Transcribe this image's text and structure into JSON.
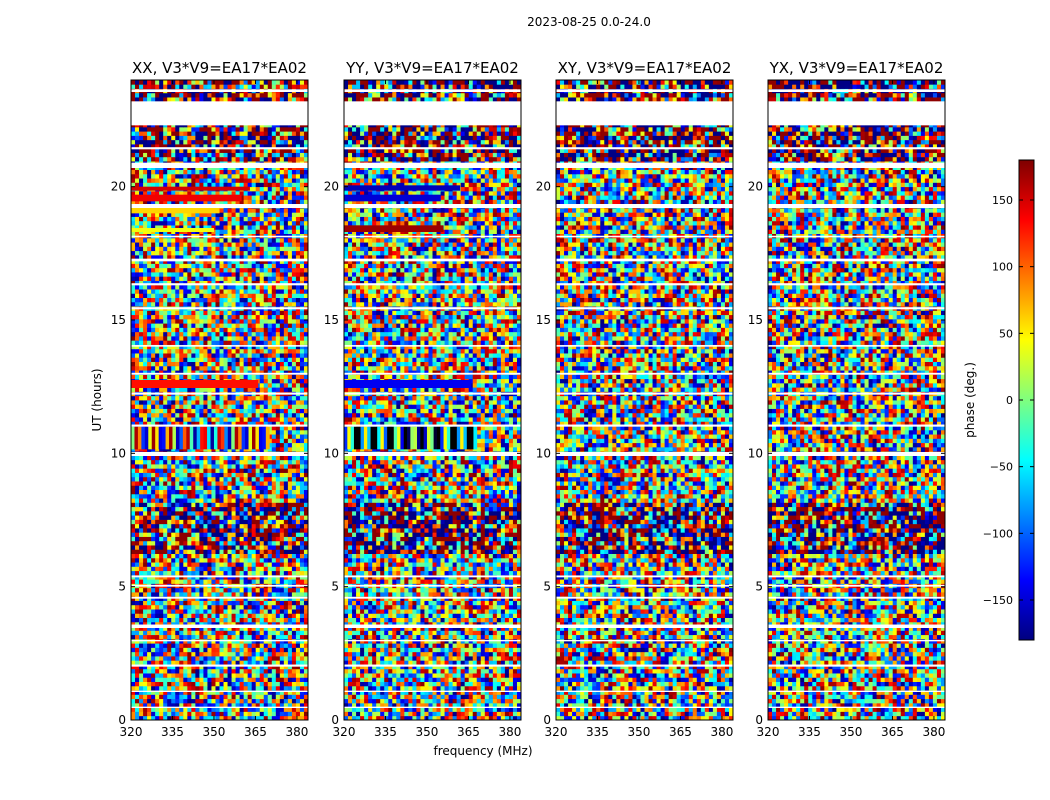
{
  "chart_data": {
    "type": "heatmap",
    "suptitle": "2023-08-25 0.0-24.0",
    "xlabel": "frequency (MHz)",
    "ylabel": "UT (hours)",
    "xlim": [
      320,
      384
    ],
    "ylim": [
      0,
      24
    ],
    "xticks": [
      320,
      335,
      350,
      365,
      380
    ],
    "yticks": [
      0,
      5,
      10,
      15,
      20
    ],
    "colormap": "jet",
    "colorbar": {
      "label": "phase (deg.)",
      "range": [
        -180,
        180
      ],
      "ticks": [
        150,
        100,
        50,
        0,
        -50,
        -100,
        -150
      ],
      "tick_labels": [
        "150",
        "100",
        "50",
        "0",
        "−50",
        "−100",
        "−150"
      ],
      "colors": [
        "#00007f",
        "#0000ff",
        "#007fff",
        "#00ffff",
        "#7fff7f",
        "#ffff00",
        "#ff7f00",
        "#ff0000",
        "#7f0000"
      ]
    },
    "panels": [
      {
        "title": "XX, V3*V9=EA17*EA02",
        "polarization": "XX"
      },
      {
        "title": "YY, V3*V9=EA17*EA02",
        "polarization": "YY"
      },
      {
        "title": "XY, V3*V9=EA17*EA02",
        "polarization": "XY"
      },
      {
        "title": "YX, V3*V9=EA17*EA02",
        "polarization": "YX"
      }
    ],
    "flagged_gaps_hours": [
      [
        0.45,
        0.5
      ],
      [
        1.05,
        1.1
      ],
      [
        2.0,
        2.08
      ],
      [
        2.95,
        3.0
      ],
      [
        3.45,
        3.58
      ],
      [
        4.55,
        4.62
      ],
      [
        5.0,
        5.07
      ],
      [
        5.35,
        5.42
      ],
      [
        9.9,
        10.05
      ],
      [
        11.0,
        11.08
      ],
      [
        12.2,
        12.28
      ],
      [
        12.95,
        13.02
      ],
      [
        14.0,
        14.06
      ],
      [
        15.4,
        15.48
      ],
      [
        16.3,
        16.38
      ],
      [
        17.2,
        17.3
      ],
      [
        18.1,
        18.16
      ],
      [
        19.2,
        19.35
      ],
      [
        20.7,
        20.9
      ],
      [
        21.4,
        21.48
      ],
      [
        22.3,
        23.2
      ],
      [
        23.55,
        23.65
      ]
    ],
    "coherent_phase_bands": [
      {
        "panel": "XX",
        "t": [
          19.85,
          20.0
        ],
        "f": [
          320,
          363
        ],
        "phase": 150
      },
      {
        "panel": "XX",
        "t": [
          19.45,
          19.7
        ],
        "f": [
          320,
          360
        ],
        "phase": 140
      },
      {
        "panel": "XX",
        "t": [
          19.0,
          19.25
        ],
        "f": [
          320,
          352
        ],
        "phase": 60
      },
      {
        "panel": "XX",
        "t": [
          18.3,
          18.45
        ],
        "f": [
          320,
          350
        ],
        "phase": 40
      },
      {
        "panel": "XX",
        "t": [
          12.45,
          12.75
        ],
        "f": [
          320,
          366
        ],
        "phase": 130
      },
      {
        "panel": "XX",
        "t": [
          10.15,
          11.0
        ],
        "f": [
          320,
          370
        ],
        "phase": 0,
        "striped": true
      },
      {
        "panel": "YY",
        "t": [
          19.85,
          20.05
        ],
        "f": [
          320,
          362
        ],
        "phase": -160
      },
      {
        "panel": "YY",
        "t": [
          19.45,
          19.7
        ],
        "f": [
          320,
          355
        ],
        "phase": -150
      },
      {
        "panel": "YY",
        "t": [
          18.3,
          18.55
        ],
        "f": [
          320,
          356
        ],
        "phase": 170
      },
      {
        "panel": "YY",
        "t": [
          12.45,
          12.75
        ],
        "f": [
          320,
          366
        ],
        "phase": -140
      },
      {
        "panel": "YY",
        "t": [
          10.15,
          11.0
        ],
        "f": [
          320,
          368
        ],
        "phase": -120,
        "striped": true
      }
    ]
  }
}
